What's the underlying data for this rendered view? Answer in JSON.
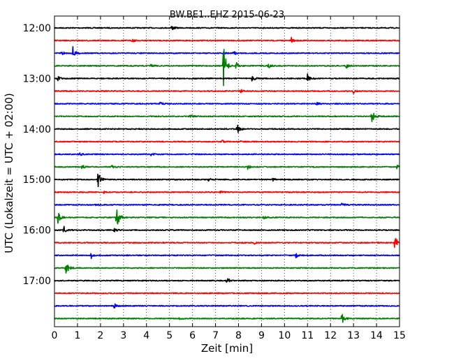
{
  "chart_data": {
    "type": "line",
    "title": "BW.BE1..EHZ 2015-06-23",
    "xlabel": "Zeit  [min]",
    "ylabel": "UTC (Lokalzeit = UTC + 02:00)",
    "xlim": [
      0,
      15
    ],
    "x_ticks": [
      "0",
      "1",
      "2",
      "3",
      "4",
      "5",
      "6",
      "7",
      "8",
      "9",
      "10",
      "11",
      "12",
      "13",
      "14",
      "15"
    ],
    "grid": "vertical dotted",
    "colors": [
      "#000000",
      "#ff0000",
      "#0000ff",
      "#008000"
    ],
    "y_tick_labels": [
      "12:00",
      "13:00",
      "14:00",
      "15:00",
      "16:00",
      "17:00"
    ],
    "series": [
      {
        "start": "12:00",
        "color": "#000000",
        "events": [
          {
            "t": 5.1,
            "amp": 0.35
          }
        ]
      },
      {
        "start": "12:15",
        "color": "#ff0000",
        "events": [
          {
            "t": 3.4,
            "amp": 0.2
          },
          {
            "t": 10.3,
            "amp": 0.4
          }
        ]
      },
      {
        "start": "12:30",
        "color": "#0000ff",
        "events": [
          {
            "t": 0.3,
            "amp": 0.35
          },
          {
            "t": 0.8,
            "amp": 0.9
          },
          {
            "t": 7.3,
            "amp": 0.3
          },
          {
            "t": 7.8,
            "amp": 0.3
          }
        ]
      },
      {
        "start": "12:45",
        "color": "#008000",
        "events": [
          {
            "t": 4.2,
            "amp": 0.25
          },
          {
            "t": 7.35,
            "amp": 3.0
          },
          {
            "t": 7.9,
            "amp": 0.5
          },
          {
            "t": 9.3,
            "amp": 0.3
          },
          {
            "t": 12.7,
            "amp": 0.3
          }
        ]
      },
      {
        "start": "13:00",
        "color": "#000000",
        "events": [
          {
            "t": 0.15,
            "amp": 0.35
          },
          {
            "t": 8.6,
            "amp": 0.5
          },
          {
            "t": 11.0,
            "amp": 0.6
          }
        ]
      },
      {
        "start": "13:15",
        "color": "#ff0000",
        "events": [
          {
            "t": 8.1,
            "amp": 0.25
          },
          {
            "t": 13.0,
            "amp": 0.3
          }
        ]
      },
      {
        "start": "13:30",
        "color": "#0000ff",
        "events": [
          {
            "t": 4.6,
            "amp": 0.25
          },
          {
            "t": 11.4,
            "amp": 0.2
          }
        ]
      },
      {
        "start": "13:45",
        "color": "#008000",
        "events": [
          {
            "t": 5.9,
            "amp": 0.3
          },
          {
            "t": 13.8,
            "amp": 1.0
          }
        ]
      },
      {
        "start": "14:00",
        "color": "#000000",
        "events": [
          {
            "t": 7.95,
            "amp": 0.7
          }
        ]
      },
      {
        "start": "14:15",
        "color": "#ff0000",
        "events": [
          {
            "t": 7.3,
            "amp": 0.2
          },
          {
            "t": 8.0,
            "amp": 0.2
          }
        ]
      },
      {
        "start": "14:30",
        "color": "#0000ff",
        "events": [
          {
            "t": 1.1,
            "amp": 0.2
          },
          {
            "t": 4.2,
            "amp": 0.2
          }
        ]
      },
      {
        "start": "14:45",
        "color": "#008000",
        "events": [
          {
            "t": 1.2,
            "amp": 0.3
          },
          {
            "t": 2.5,
            "amp": 0.2
          },
          {
            "t": 8.4,
            "amp": 0.35
          },
          {
            "t": 14.9,
            "amp": 0.3
          }
        ]
      },
      {
        "start": "15:00",
        "color": "#000000",
        "events": [
          {
            "t": 1.9,
            "amp": 1.4
          },
          {
            "t": 6.7,
            "amp": 0.2
          },
          {
            "t": 9.5,
            "amp": 0.2
          }
        ]
      },
      {
        "start": "15:15",
        "color": "#ff0000",
        "events": [
          {
            "t": 2.1,
            "amp": 0.25
          },
          {
            "t": 7.2,
            "amp": 0.2
          }
        ]
      },
      {
        "start": "15:30",
        "color": "#0000ff",
        "events": [
          {
            "t": 1.8,
            "amp": 0.25
          },
          {
            "t": 12.5,
            "amp": 0.25
          }
        ]
      },
      {
        "start": "15:45",
        "color": "#008000",
        "events": [
          {
            "t": 0.15,
            "amp": 0.8
          },
          {
            "t": 2.7,
            "amp": 2.3
          },
          {
            "t": 9.1,
            "amp": 0.25
          }
        ]
      },
      {
        "start": "16:00",
        "color": "#000000",
        "events": [
          {
            "t": 0.4,
            "amp": 0.6
          },
          {
            "t": 2.6,
            "amp": 0.3
          }
        ]
      },
      {
        "start": "16:15",
        "color": "#ff0000",
        "events": [
          {
            "t": 8.7,
            "amp": 0.2
          },
          {
            "t": 14.8,
            "amp": 1.0
          }
        ]
      },
      {
        "start": "16:30",
        "color": "#0000ff",
        "events": [
          {
            "t": 1.6,
            "amp": 0.4
          },
          {
            "t": 10.5,
            "amp": 0.3
          }
        ]
      },
      {
        "start": "16:45",
        "color": "#008000",
        "events": [
          {
            "t": 0.5,
            "amp": 1.2
          }
        ]
      },
      {
        "start": "17:00",
        "color": "#000000",
        "events": [
          {
            "t": 7.5,
            "amp": 0.5
          }
        ]
      },
      {
        "start": "17:15",
        "color": "#ff0000",
        "events": []
      },
      {
        "start": "17:30",
        "color": "#0000ff",
        "events": [
          {
            "t": 2.6,
            "amp": 0.35
          }
        ]
      },
      {
        "start": "17:45",
        "color": "#008000",
        "events": [
          {
            "t": 5.4,
            "amp": 0.2
          },
          {
            "t": 12.5,
            "amp": 0.7
          }
        ]
      }
    ]
  }
}
